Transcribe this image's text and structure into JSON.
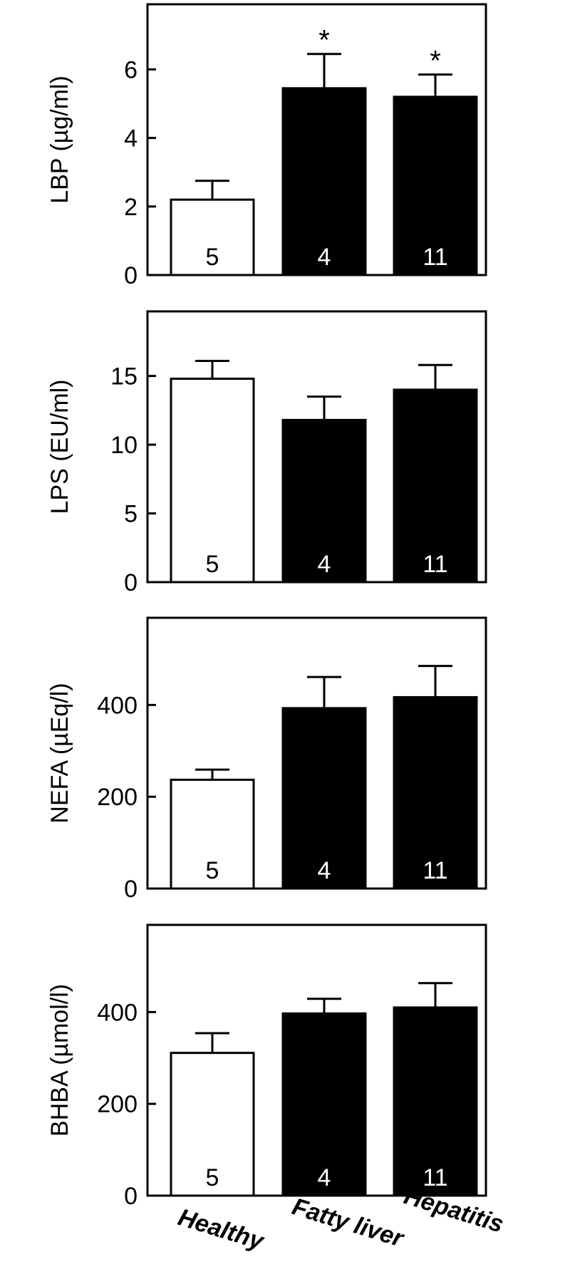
{
  "chart_data": [
    {
      "type": "bar",
      "ylabel": "LBP (µg/ml)",
      "categories": [
        "Healthy",
        "Fatty liver",
        "Hepatitis"
      ],
      "values": [
        2.2,
        5.45,
        5.2
      ],
      "errors": [
        0.55,
        1.0,
        0.65
      ],
      "n": [
        "5",
        "4",
        "11"
      ],
      "significance": [
        "",
        "*",
        "*"
      ],
      "ylim": [
        0,
        7.9
      ],
      "yticks": [
        0,
        2,
        4,
        6
      ],
      "bar_colors": [
        "#ffffff",
        "#000000",
        "#000000"
      ]
    },
    {
      "type": "bar",
      "ylabel": "LPS (EU/ml)",
      "categories": [
        "Healthy",
        "Fatty liver",
        "Hepatitis"
      ],
      "values": [
        14.8,
        11.8,
        14.0
      ],
      "errors": [
        1.3,
        1.7,
        1.8
      ],
      "n": [
        "5",
        "4",
        "11"
      ],
      "significance": [
        "",
        "",
        ""
      ],
      "ylim": [
        0,
        19.7
      ],
      "yticks": [
        0,
        5,
        10,
        15
      ],
      "bar_colors": [
        "#ffffff",
        "#000000",
        "#000000"
      ]
    },
    {
      "type": "bar",
      "ylabel": "NEFA (µEq/l)",
      "categories": [
        "Healthy",
        "Fatty liver",
        "Hepatitis"
      ],
      "values": [
        237,
        393,
        417
      ],
      "errors": [
        22,
        68,
        68
      ],
      "n": [
        "5",
        "4",
        "11"
      ],
      "significance": [
        "",
        "",
        ""
      ],
      "ylim": [
        0,
        590
      ],
      "yticks": [
        0,
        200,
        400
      ],
      "bar_colors": [
        "#ffffff",
        "#000000",
        "#000000"
      ]
    },
    {
      "type": "bar",
      "ylabel": "BHBA (µmol/l)",
      "categories": [
        "Healthy",
        "Fatty liver",
        "Hepatitis"
      ],
      "values": [
        311,
        397,
        410
      ],
      "errors": [
        43,
        32,
        53
      ],
      "n": [
        "5",
        "4",
        "11"
      ],
      "significance": [
        "",
        "",
        ""
      ],
      "ylim": [
        0,
        590
      ],
      "yticks": [
        0,
        200,
        400
      ],
      "bar_colors": [
        "#ffffff",
        "#000000",
        "#000000"
      ]
    }
  ],
  "x_categories": [
    "Healthy",
    "Fatty liver",
    "Hepatitis"
  ]
}
